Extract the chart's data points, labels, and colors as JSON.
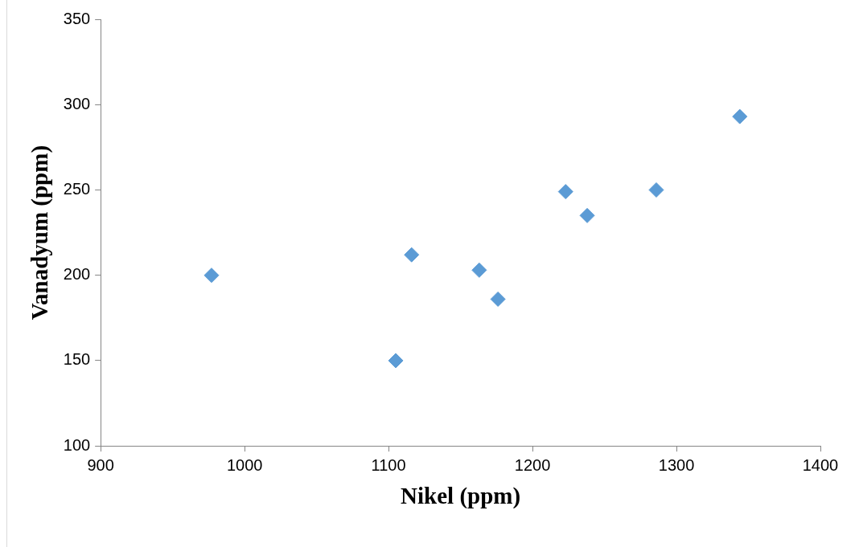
{
  "chart_data": {
    "type": "scatter",
    "xlabel": "Nikel (ppm)",
    "ylabel": "Vanadyum (ppm)",
    "x": [
      977,
      1105,
      1116,
      1163,
      1176,
      1223,
      1238,
      1286,
      1344
    ],
    "series": [
      {
        "color": "#5b9bd5",
        "values": [
          200,
          150,
          212,
          203,
          186,
          249,
          235,
          250,
          293
        ]
      }
    ],
    "xlim": [
      900,
      1400
    ],
    "xticks": [
      900,
      1000,
      1100,
      1200,
      1300,
      1400
    ],
    "ylim": [
      100,
      350
    ],
    "yticks": [
      100,
      150,
      200,
      250,
      300,
      350
    ],
    "grid": false,
    "legend": false,
    "marker": "diamond"
  }
}
